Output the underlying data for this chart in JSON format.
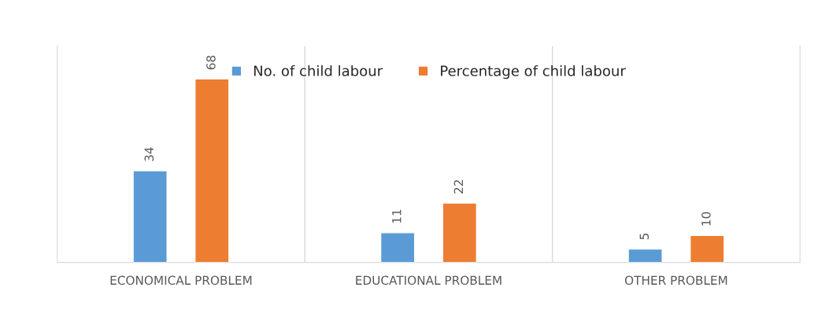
{
  "chart_data": {
    "type": "bar",
    "categories": [
      "ECONOMICAL PROBLEM",
      "EDUCATIONAL PROBLEM",
      "OTHER PROBLEM"
    ],
    "series": [
      {
        "name": "No. of child labour",
        "color": "#5b9bd5",
        "values": [
          34,
          11,
          5
        ]
      },
      {
        "name": "Percentage of child labour",
        "color": "#ed7d31",
        "values": [
          68,
          22,
          10
        ]
      }
    ],
    "data_labels": true,
    "grid": "x",
    "legend": "top",
    "tick_labels": "x"
  }
}
